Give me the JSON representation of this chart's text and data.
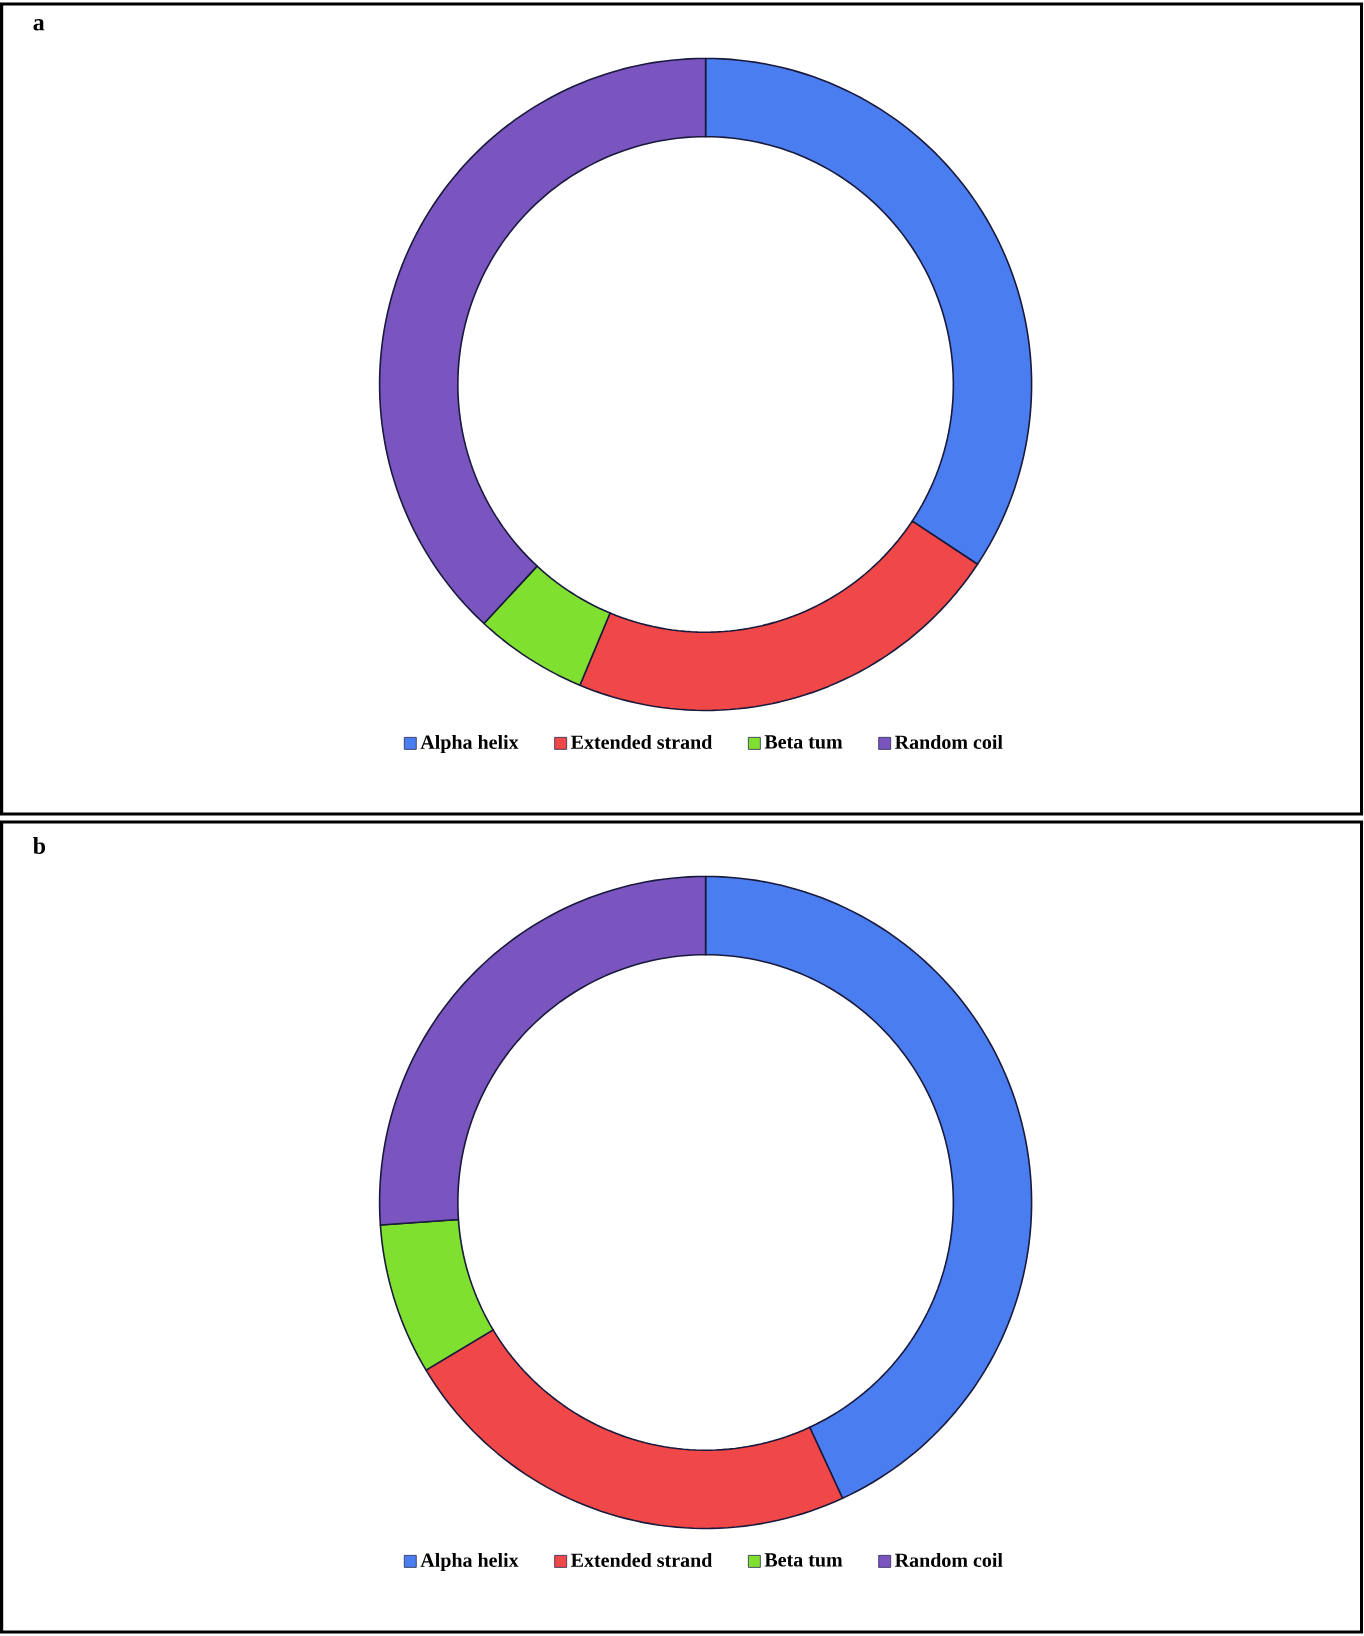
{
  "chart_data": [
    {
      "type": "donut",
      "title": "a",
      "categories": [
        "Alpha helix",
        "Extended strand",
        "Beta tum",
        "Random coil"
      ],
      "values": [
        34.3,
        22.0,
        5.6,
        38.1
      ],
      "colors": [
        "#4a7ef0",
        "#f04848",
        "#80e030",
        "#7a55c0"
      ],
      "legend": "bottom"
    },
    {
      "type": "donut",
      "title": "b",
      "categories": [
        "Alpha helix",
        "Extended strand",
        "Beta tum",
        "Random coil"
      ],
      "values": [
        43.1,
        23.3,
        7.5,
        26.1
      ],
      "colors": [
        "#4a7ef0",
        "#f04848",
        "#80e030",
        "#7a55c0"
      ],
      "legend": "bottom"
    }
  ]
}
